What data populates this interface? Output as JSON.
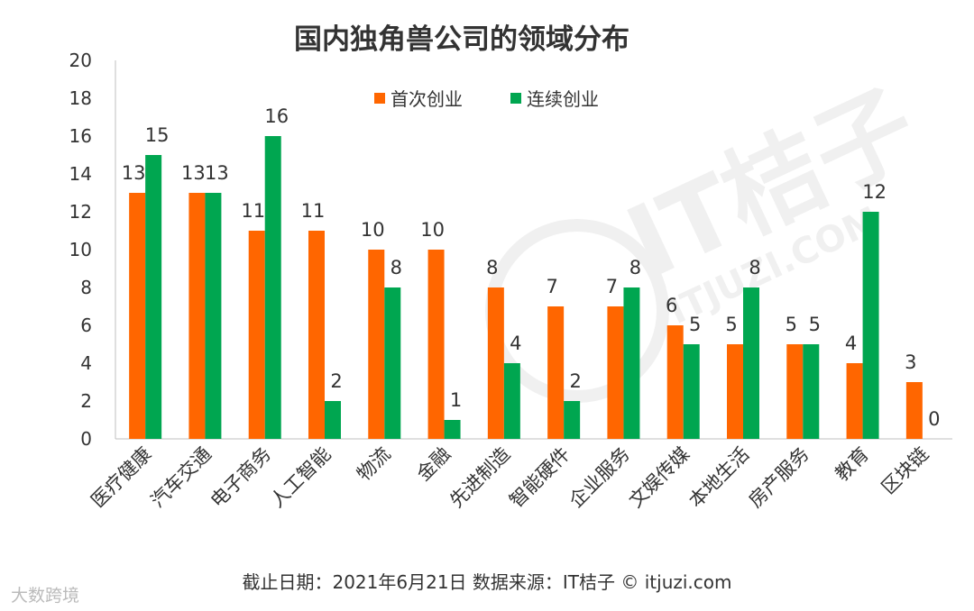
{
  "chart_data": {
    "type": "bar",
    "title": "国内独角兽公司的领域分布",
    "categories": [
      "医疗健康",
      "汽车交通",
      "电子商务",
      "人工智能",
      "物流",
      "金融",
      "先进制造",
      "智能硬件",
      "企业服务",
      "文娱传媒",
      "本地生活",
      "房产服务",
      "教育",
      "区块链"
    ],
    "series": [
      {
        "name": "首次创业",
        "values": [
          13,
          13,
          11,
          11,
          10,
          10,
          8,
          7,
          7,
          6,
          5,
          5,
          4,
          3
        ],
        "color": "#FF6600"
      },
      {
        "name": "连续创业",
        "values": [
          15,
          13,
          16,
          2,
          8,
          1,
          4,
          2,
          8,
          5,
          8,
          5,
          12,
          0
        ],
        "color": "#00A650"
      }
    ],
    "ylim": [
      0,
      20
    ],
    "yticks": [
      0,
      2,
      4,
      6,
      8,
      10,
      12,
      14,
      16,
      18,
      20
    ],
    "grid": false,
    "legend_position": "top-center",
    "xlabel": "",
    "ylabel": ""
  },
  "footer": "截止日期：2021年6月21日    数据来源：IT桔子 © itjuzi.com",
  "watermark": {
    "brand": "IT桔子",
    "site": "ITJUZI.COM",
    "corner": "大数跨境"
  }
}
